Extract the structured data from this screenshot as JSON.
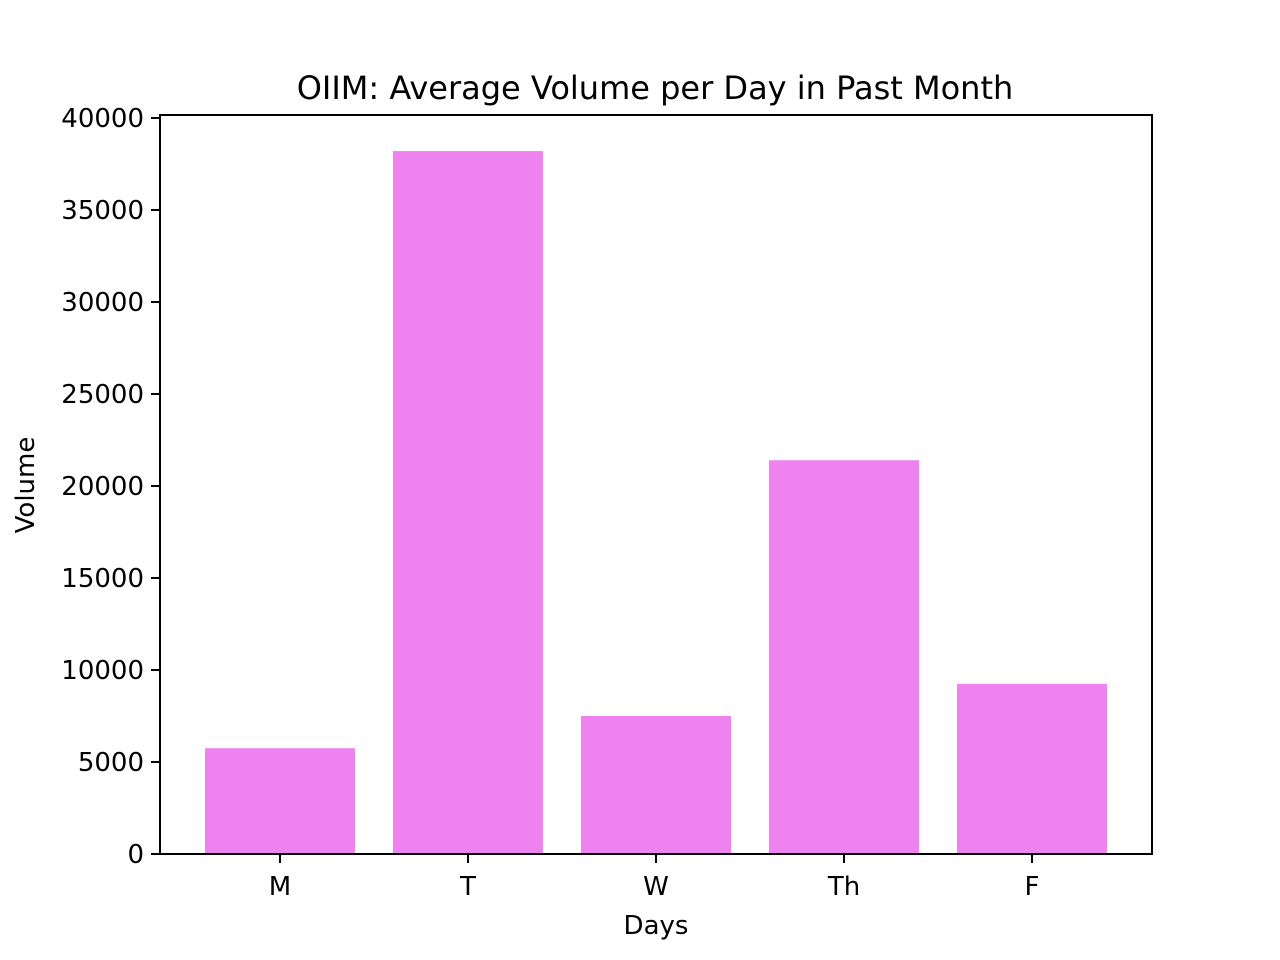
{
  "chart_data": {
    "type": "bar",
    "title": "OIIM: Average Volume per Day in Past Month",
    "xlabel": "Days",
    "ylabel": "Volume",
    "categories": [
      "M",
      "T",
      "W",
      "Th",
      "F"
    ],
    "values": [
      5750,
      38200,
      7500,
      21400,
      9250
    ],
    "ylim": [
      0,
      40000
    ],
    "yticks": [
      0,
      5000,
      10000,
      15000,
      20000,
      25000,
      30000,
      35000,
      40000
    ],
    "ytick_labels": [
      "0",
      "5000",
      "10000",
      "15000",
      "20000",
      "25000",
      "30000",
      "35000",
      "40000"
    ],
    "bar_color": "#ee82ee",
    "grid": false,
    "legend": "none"
  }
}
